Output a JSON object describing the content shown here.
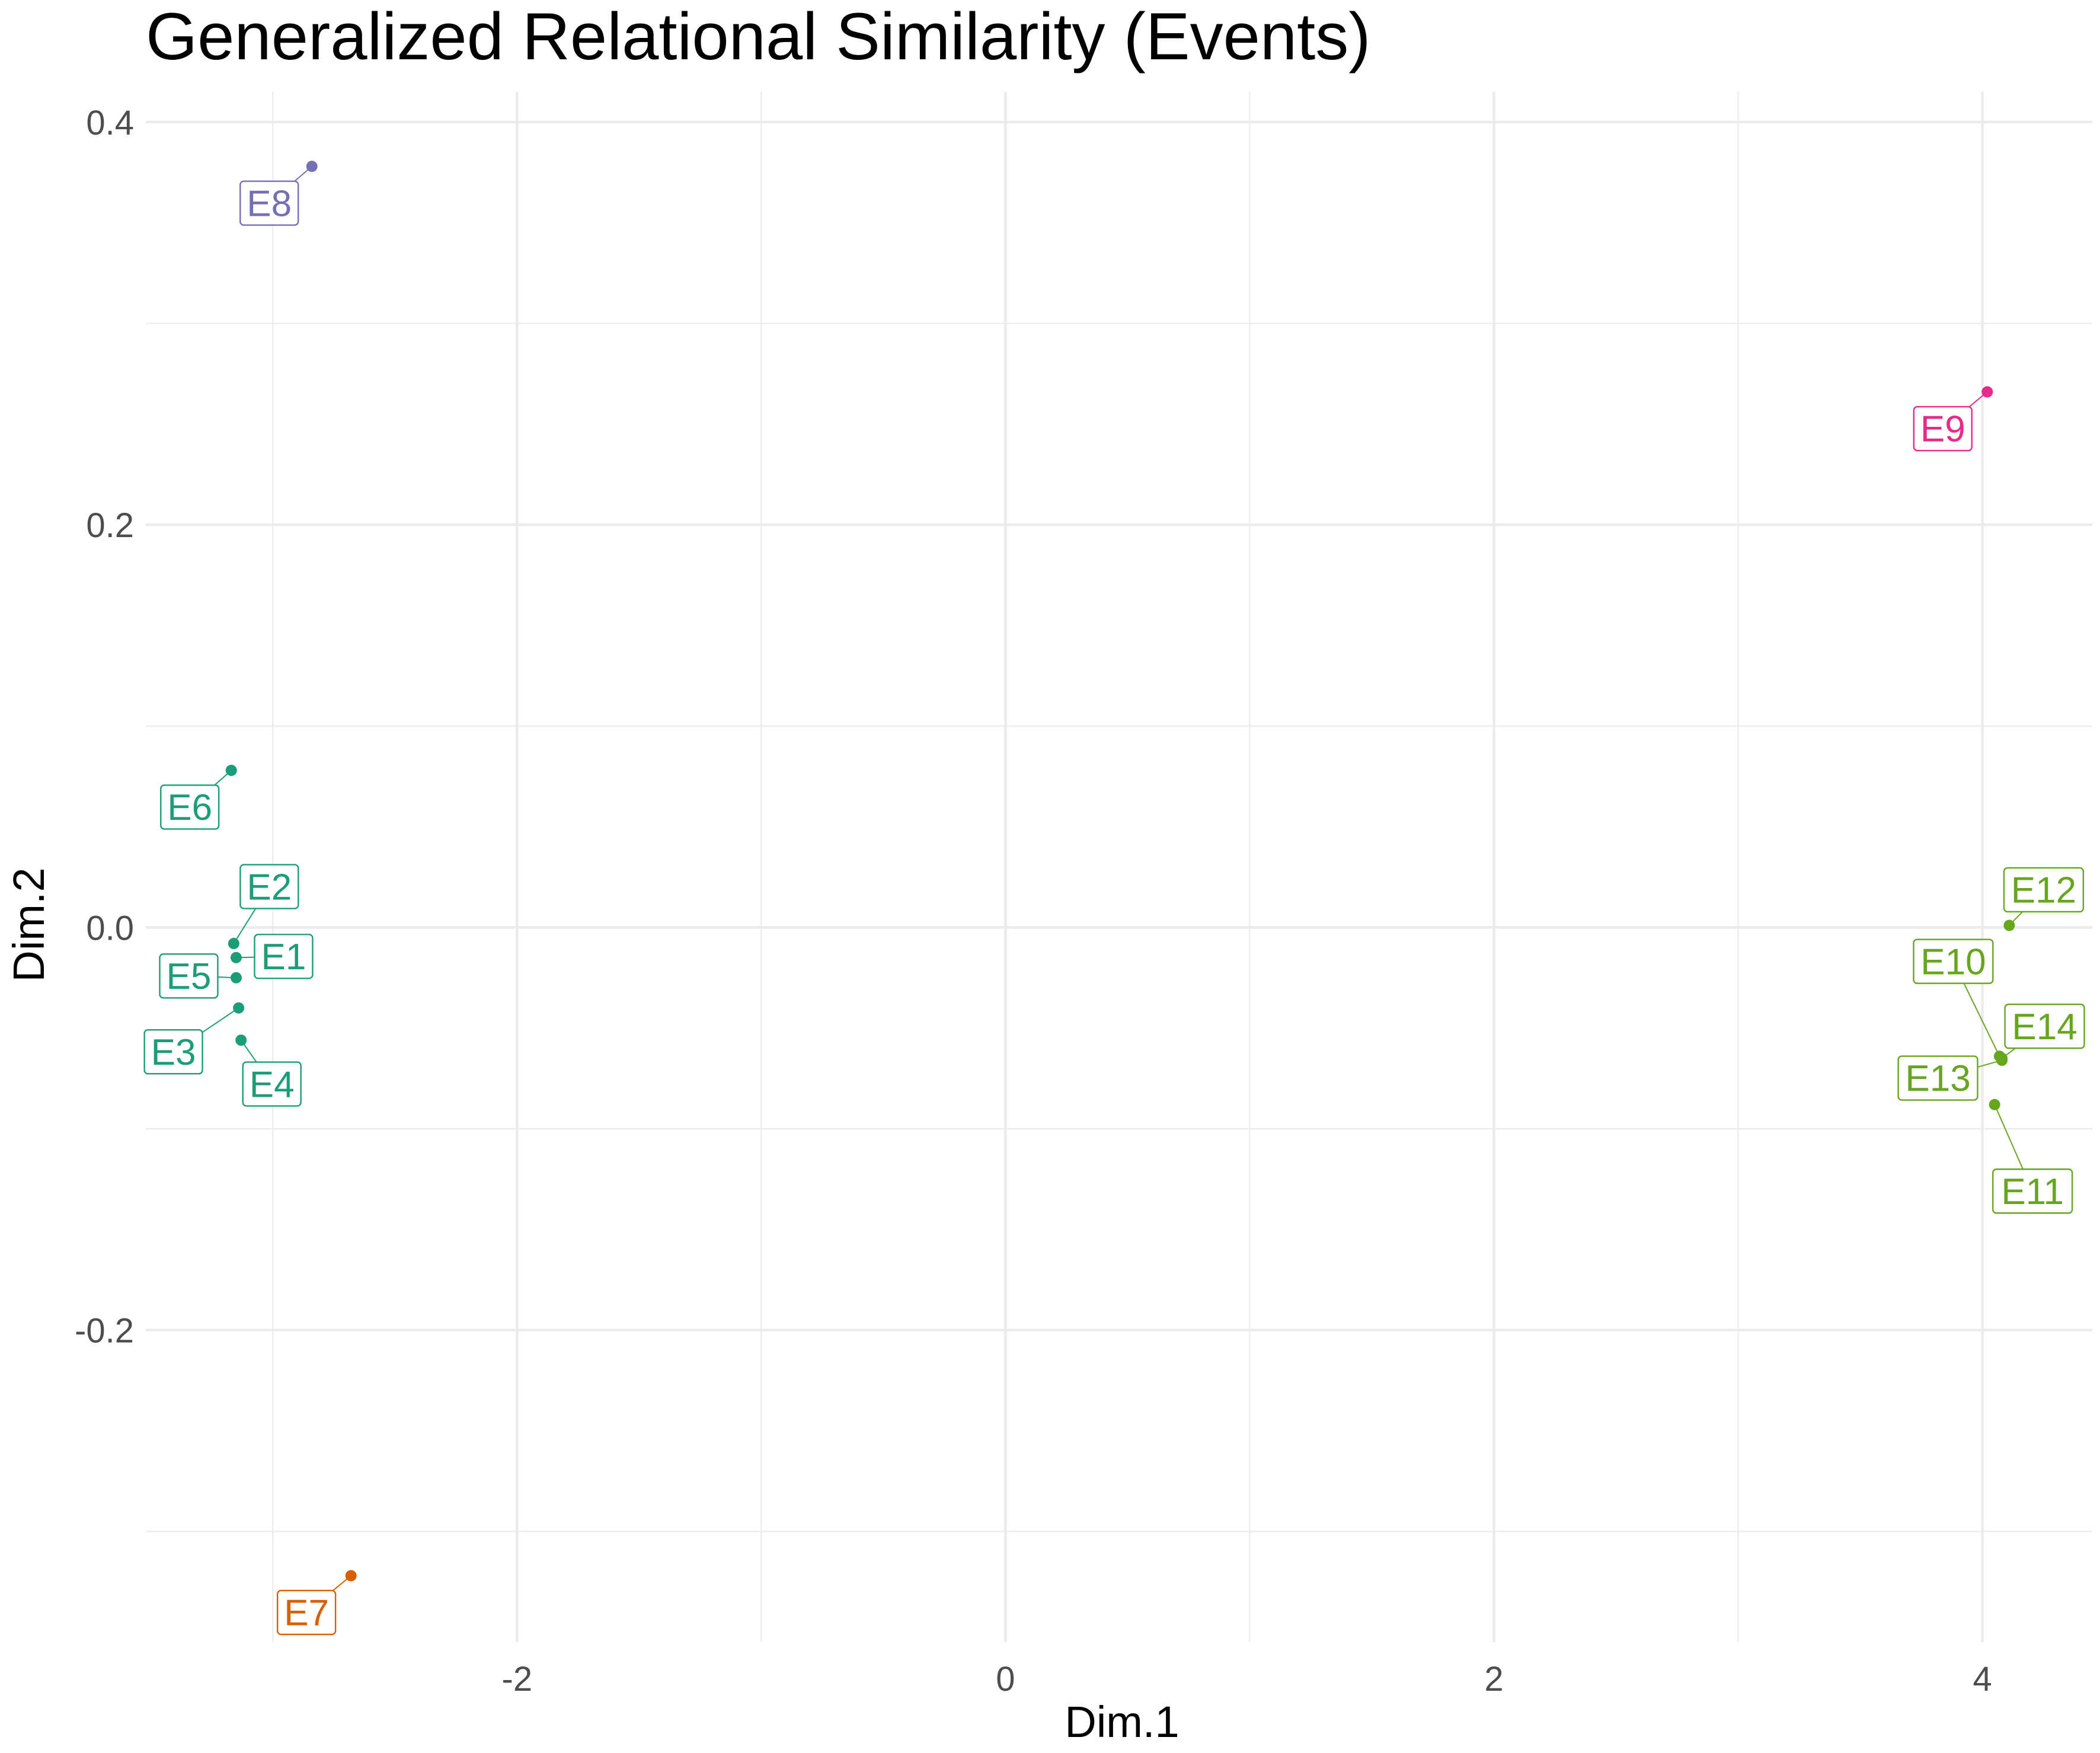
{
  "chart_data": {
    "type": "scatter",
    "title": "Generalized Relational Similarity (Events)",
    "xlabel": "Dim.1",
    "ylabel": "Dim.2",
    "xlim": [
      -3.52,
      4.45
    ],
    "ylim": [
      -0.355,
      0.415
    ],
    "x_ticks": [
      -2,
      0,
      2,
      4
    ],
    "x_tick_labels": [
      "-2",
      "0",
      "2",
      "4"
    ],
    "x_minor_ticks": [
      -3,
      -1,
      1,
      3
    ],
    "y_ticks": [
      -0.2,
      0.0,
      0.2,
      0.4
    ],
    "y_tick_labels": [
      "-0.2",
      "0.0",
      "0.2",
      "0.4"
    ],
    "y_minor_ticks": [
      -0.3,
      -0.1,
      0.1,
      0.3
    ],
    "grid": true,
    "legend": "none",
    "colors": {
      "teal": "#1b9e77",
      "orange": "#d95f02",
      "purple": "#7570b3",
      "pink": "#e7298a",
      "green": "#66a61e",
      "grid": "#ebebeb",
      "tick_text": "#4d4d4d"
    },
    "points": [
      {
        "label": "E1",
        "x": -3.15,
        "y": -0.015,
        "color": "#1b9e77"
      },
      {
        "label": "E2",
        "x": -3.16,
        "y": -0.008,
        "color": "#1b9e77"
      },
      {
        "label": "E3",
        "x": -3.14,
        "y": -0.04,
        "color": "#1b9e77"
      },
      {
        "label": "E4",
        "x": -3.13,
        "y": -0.056,
        "color": "#1b9e77"
      },
      {
        "label": "E5",
        "x": -3.15,
        "y": -0.025,
        "color": "#1b9e77"
      },
      {
        "label": "E6",
        "x": -3.17,
        "y": 0.078,
        "color": "#1b9e77"
      },
      {
        "label": "E7",
        "x": -2.68,
        "y": -0.322,
        "color": "#d95f02"
      },
      {
        "label": "E8",
        "x": -2.84,
        "y": 0.378,
        "color": "#7570b3"
      },
      {
        "label": "E9",
        "x": 4.02,
        "y": 0.266,
        "color": "#e7298a"
      },
      {
        "label": "E10",
        "x": 4.07,
        "y": -0.064,
        "color": "#66a61e"
      },
      {
        "label": "E11",
        "x": 4.05,
        "y": -0.088,
        "color": "#66a61e"
      },
      {
        "label": "E12",
        "x": 4.11,
        "y": 0.001,
        "color": "#66a61e"
      },
      {
        "label": "E13",
        "x": 4.08,
        "y": -0.066,
        "color": "#66a61e"
      },
      {
        "label": "E14",
        "x": 4.08,
        "y": -0.065,
        "color": "#66a61e"
      }
    ]
  }
}
